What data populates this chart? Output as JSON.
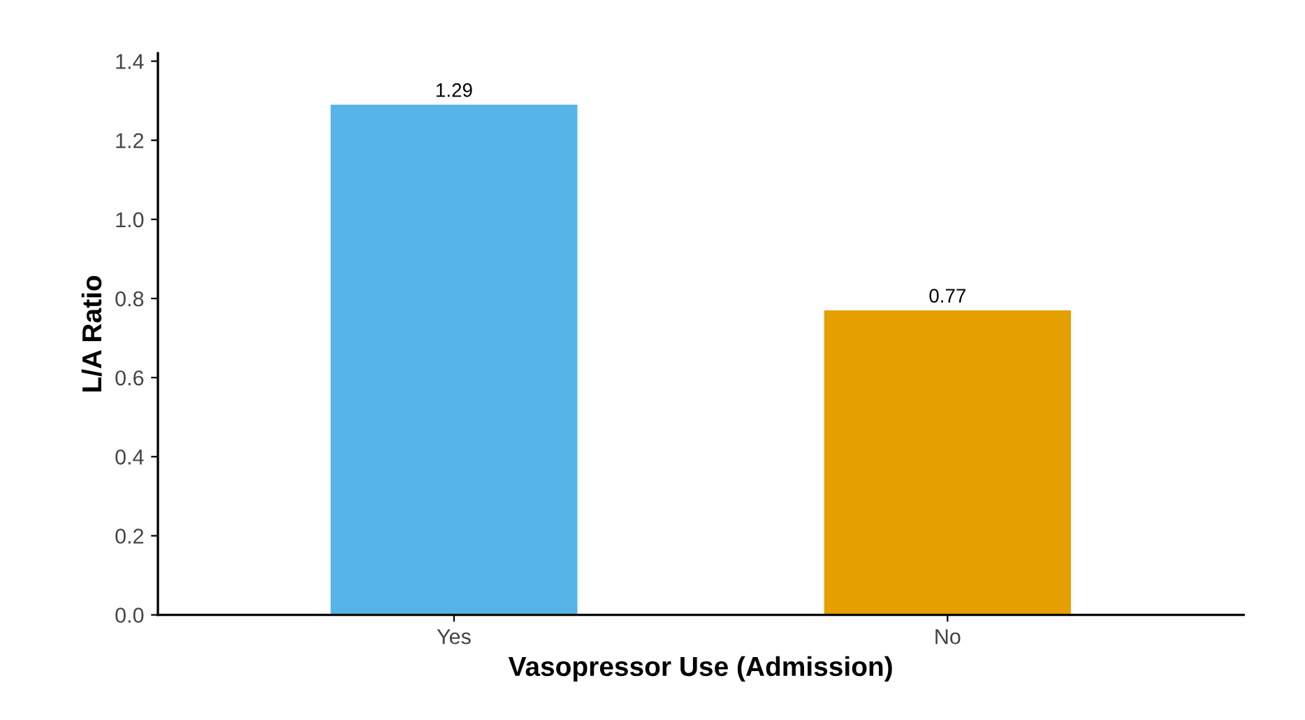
{
  "chart_data": {
    "type": "bar",
    "xlabel": "Vasopressor Use (Admission)",
    "ylabel": "L/A Ratio",
    "categories": [
      "Yes",
      "No"
    ],
    "series": [
      {
        "colors": [
          "#56b4e9",
          "#e69f00"
        ],
        "values": [
          1.29,
          0.77
        ]
      }
    ],
    "ylim": [
      0,
      1.42
    ],
    "yticks": [
      {
        "value": 0,
        "label": "0.0"
      },
      0.2,
      0.4,
      0.6,
      0.8,
      {
        "value": 1,
        "label": "1.0"
      },
      1.2,
      1.4
    ],
    "grid": false,
    "data_labels": true
  }
}
